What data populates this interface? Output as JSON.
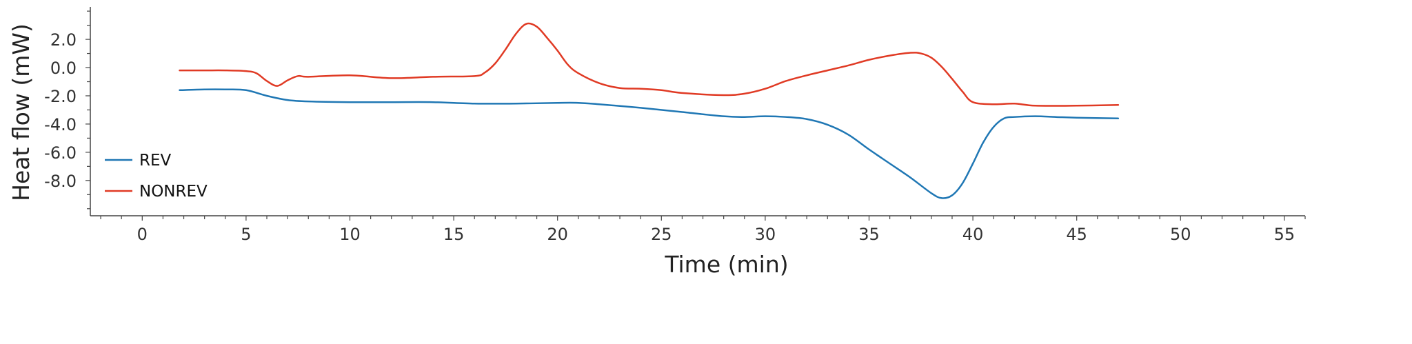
{
  "chart_data": {
    "type": "line",
    "xlabel": "Time (min)",
    "ylabel": "Heat flow (mW)",
    "xlim": [
      -2.5,
      56
    ],
    "ylim": [
      -10.5,
      4.3
    ],
    "xticks": [
      0,
      5,
      10,
      15,
      20,
      25,
      30,
      35,
      40,
      45,
      50,
      55
    ],
    "xtick_labels": [
      "0",
      "5",
      "10",
      "15",
      "20",
      "25",
      "30",
      "35",
      "40",
      "45",
      "50",
      "55"
    ],
    "yticks": [
      2,
      0,
      -2,
      -4,
      -6,
      -8
    ],
    "ytick_labels": [
      "2.0",
      "0.0",
      "-2.0",
      "-4.0",
      "-6.0",
      "-8.0"
    ],
    "grid": false,
    "legend_position": "lower-left",
    "series": [
      {
        "name": "REV",
        "color": "#1f77b4",
        "x": [
          1.8,
          3,
          4,
          5,
          6,
          7,
          8,
          10,
          12,
          14,
          16,
          18,
          20,
          21,
          22,
          24,
          26,
          28,
          29,
          30,
          31,
          32,
          33,
          34,
          35,
          36,
          37,
          38,
          38.5,
          39,
          39.5,
          40,
          40.5,
          41,
          41.5,
          42,
          43,
          44,
          45,
          47
        ],
        "y": [
          -1.6,
          -1.55,
          -1.55,
          -1.6,
          -2.0,
          -2.3,
          -2.4,
          -2.45,
          -2.45,
          -2.45,
          -2.55,
          -2.55,
          -2.5,
          -2.5,
          -2.6,
          -2.85,
          -3.15,
          -3.45,
          -3.5,
          -3.45,
          -3.5,
          -3.65,
          -4.05,
          -4.75,
          -5.8,
          -6.8,
          -7.8,
          -8.9,
          -9.25,
          -9.05,
          -8.2,
          -6.8,
          -5.3,
          -4.2,
          -3.6,
          -3.5,
          -3.45,
          -3.5,
          -3.55,
          -3.6
        ]
      },
      {
        "name": "NONREV",
        "color": "#e03a24",
        "x": [
          1.8,
          3,
          4,
          5,
          5.5,
          6,
          6.5,
          7,
          7.5,
          8,
          10,
          12,
          14,
          16,
          16.5,
          17,
          17.5,
          18,
          18.5,
          19,
          19.5,
          20,
          20.5,
          21,
          22,
          23,
          24,
          25,
          26,
          28,
          29,
          30,
          31,
          32,
          33,
          34,
          35,
          36,
          37,
          37.5,
          38,
          38.5,
          39,
          39.5,
          40,
          41,
          42,
          43,
          45,
          47
        ],
        "y": [
          -0.2,
          -0.2,
          -0.2,
          -0.25,
          -0.4,
          -0.95,
          -1.3,
          -0.9,
          -0.6,
          -0.65,
          -0.55,
          -0.75,
          -0.65,
          -0.6,
          -0.35,
          0.3,
          1.3,
          2.4,
          3.1,
          2.9,
          2.1,
          1.2,
          0.2,
          -0.4,
          -1.1,
          -1.45,
          -1.5,
          -1.6,
          -1.8,
          -1.95,
          -1.85,
          -1.5,
          -0.95,
          -0.55,
          -0.2,
          0.15,
          0.55,
          0.85,
          1.05,
          1.0,
          0.7,
          0.05,
          -0.8,
          -1.7,
          -2.45,
          -2.6,
          -2.55,
          -2.7,
          -2.7,
          -2.65
        ]
      }
    ]
  }
}
